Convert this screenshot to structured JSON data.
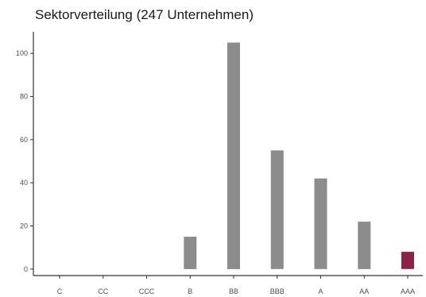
{
  "chart_data": {
    "type": "bar",
    "title": "Sektorverteilung (247 Unternehmen)",
    "xlabel": "",
    "ylabel": "",
    "categories": [
      "C",
      "CC",
      "CCC",
      "B",
      "BB",
      "BBB",
      "A",
      "AA",
      "AAA"
    ],
    "values": [
      0,
      0,
      0,
      15,
      105,
      55,
      42,
      22,
      8
    ],
    "highlight_index": 8,
    "ylim": [
      -3,
      110
    ],
    "yticks": [
      0,
      20,
      40,
      60,
      80,
      100
    ],
    "grid": false,
    "colors": {
      "bar": "#8c8c8c",
      "highlight": "#8b2346",
      "axis": "#333333",
      "text": "#4d4d4d"
    }
  }
}
